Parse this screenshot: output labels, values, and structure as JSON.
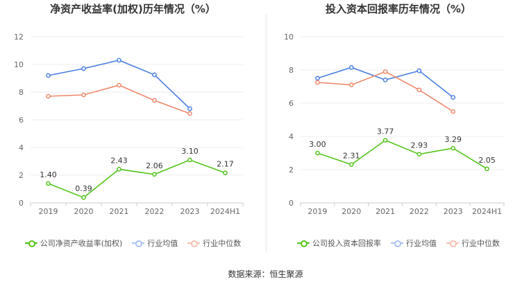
{
  "chart_data": [
    {
      "type": "line",
      "title": "净资产收益率(加权)历年情况（%）",
      "categories": [
        "2019",
        "2020",
        "2021",
        "2022",
        "2023",
        "2024H1"
      ],
      "ylim": [
        0,
        12
      ],
      "yticks": [
        0,
        2,
        4,
        6,
        8,
        10,
        12
      ],
      "grid": true,
      "legend_position": "bottom",
      "series": [
        {
          "name": "公司净资产收益率(加权)",
          "color": "#52c41a",
          "values": [
            1.4,
            0.39,
            2.43,
            2.06,
            3.1,
            2.17
          ],
          "labels": [
            "1.40",
            "0.39",
            "2.43",
            "2.06",
            "3.10",
            "2.17"
          ]
        },
        {
          "name": "行业均值",
          "color": "#4a7fe0",
          "values": [
            9.2,
            9.7,
            10.3,
            9.25,
            6.8,
            null
          ]
        },
        {
          "name": "行业中位数",
          "color": "#f0876a",
          "values": [
            7.7,
            7.8,
            8.5,
            7.4,
            6.45,
            null
          ]
        }
      ]
    },
    {
      "type": "line",
      "title": "投入资本回报率历年情况（%）",
      "categories": [
        "2019",
        "2020",
        "2021",
        "2022",
        "2023",
        "2024H1"
      ],
      "ylim": [
        0,
        10
      ],
      "yticks": [
        0,
        2,
        4,
        6,
        8,
        10
      ],
      "grid": true,
      "legend_position": "bottom",
      "series": [
        {
          "name": "公司投入资本回报率",
          "color": "#52c41a",
          "values": [
            3.0,
            2.31,
            3.77,
            2.93,
            3.29,
            2.05
          ],
          "labels": [
            "3.00",
            "2.31",
            "3.77",
            "2.93",
            "3.29",
            "2.05"
          ]
        },
        {
          "name": "行业均值",
          "color": "#4a7fe0",
          "values": [
            7.5,
            8.15,
            7.4,
            7.95,
            6.35,
            null
          ]
        },
        {
          "name": "行业中位数",
          "color": "#f0876a",
          "values": [
            7.25,
            7.1,
            7.9,
            6.8,
            5.5,
            null
          ]
        }
      ]
    }
  ],
  "footer": {
    "source": "数据来源：恒生聚源"
  }
}
